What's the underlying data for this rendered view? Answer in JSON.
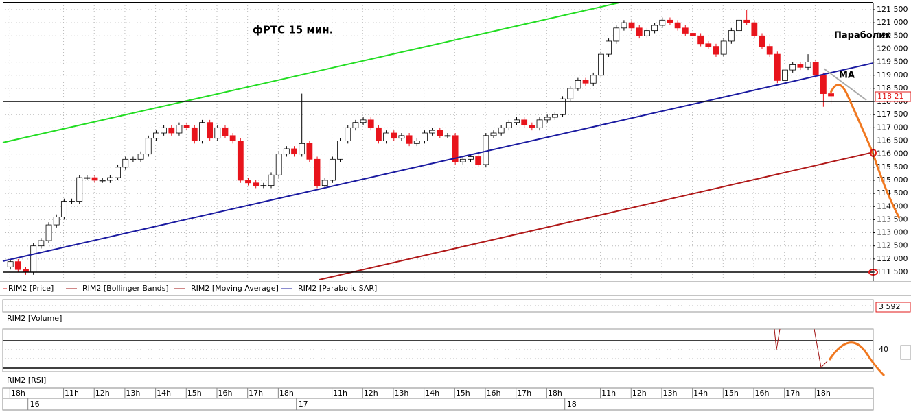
{
  "chart_data": {
    "type": "candlestick",
    "title": "фРТС   15 мин.",
    "annotations": [
      "Параболик",
      "MA"
    ],
    "legend": [
      "RIM2 [Price]",
      "RIM2 [Bollinger Bands]",
      "RIM2 [Moving Average]",
      "RIM2 [Parabolic SAR]"
    ],
    "panels": [
      "RIM2 [Volume]",
      "RIM2 [RSI]"
    ],
    "last_price_label": "118 21",
    "volume_label": "3 592",
    "rsi_ticks": [
      "40"
    ],
    "up_color": "#ffffff",
    "down_color": "#e8141c",
    "grid": true,
    "ylim": [
      111500,
      121500
    ],
    "yticks": [
      {
        "value": 111500,
        "label": "111 500"
      },
      {
        "value": 112000,
        "label": "112 000"
      },
      {
        "value": 112500,
        "label": "112 500"
      },
      {
        "value": 113000,
        "label": "113 000"
      },
      {
        "value": 113500,
        "label": "113 500"
      },
      {
        "value": 114000,
        "label": "114 000"
      },
      {
        "value": 114500,
        "label": "114 500"
      },
      {
        "value": 115000,
        "label": "115 000"
      },
      {
        "value": 115500,
        "label": "115 500"
      },
      {
        "value": 116000,
        "label": "116 000"
      },
      {
        "value": 116500,
        "label": "116 500"
      },
      {
        "value": 117000,
        "label": "117 000"
      },
      {
        "value": 117500,
        "label": "117 500"
      },
      {
        "value": 118000,
        "label": "118 000"
      },
      {
        "value": 118500,
        "label": "118 500"
      },
      {
        "value": 119000,
        "label": "119 000"
      },
      {
        "value": 119500,
        "label": "119 500"
      },
      {
        "value": 120000,
        "label": "120 000"
      },
      {
        "value": 120500,
        "label": "120 500"
      },
      {
        "value": 121000,
        "label": "121 000"
      },
      {
        "value": 121500,
        "label": "121 500"
      }
    ],
    "xlim": [
      -1,
      112.5
    ],
    "xticks": [
      {
        "value": 1,
        "label": "18h"
      },
      {
        "value": 8,
        "label": "11h"
      },
      {
        "value": 12,
        "label": "12h"
      },
      {
        "value": 16,
        "label": "13h"
      },
      {
        "value": 20,
        "label": "14h"
      },
      {
        "value": 24,
        "label": "15h"
      },
      {
        "value": 28,
        "label": "16h"
      },
      {
        "value": 32,
        "label": "17h"
      },
      {
        "value": 36,
        "label": "18h"
      },
      {
        "value": 43,
        "label": "11h"
      },
      {
        "value": 47,
        "label": "12h"
      },
      {
        "value": 51,
        "label": "13h"
      },
      {
        "value": 55,
        "label": "14h"
      },
      {
        "value": 59,
        "label": "15h"
      },
      {
        "value": 63,
        "label": "16h"
      },
      {
        "value": 67,
        "label": "17h"
      },
      {
        "value": 71,
        "label": "18h"
      },
      {
        "value": 78,
        "label": "11h"
      },
      {
        "value": 82,
        "label": "12h"
      },
      {
        "value": 86,
        "label": "13h"
      },
      {
        "value": 90,
        "label": "14h"
      },
      {
        "value": 94,
        "label": "15h"
      },
      {
        "value": 98,
        "label": "16h"
      },
      {
        "value": 102,
        "label": "17h"
      },
      {
        "value": 106,
        "label": "18h"
      }
    ],
    "day_ticks": [
      {
        "value": 3,
        "label": "16"
      },
      {
        "value": 38,
        "label": "17"
      },
      {
        "value": 73,
        "label": "18"
      }
    ],
    "open": [
      111700,
      111900,
      111600,
      111500,
      112500,
      112700,
      113300,
      113600,
      114200,
      114200,
      115100,
      115100,
      115000,
      115000,
      115100,
      115500,
      115800,
      115800,
      116000,
      116600,
      116800,
      117000,
      116800,
      117100,
      117000,
      116500,
      117200,
      116600,
      117000,
      116700,
      116500,
      115000,
      114900,
      114800,
      114800,
      115200,
      116000,
      116200,
      116000,
      116400,
      115800,
      114800,
      115000,
      115800,
      116500,
      117000,
      117200,
      117300,
      117000,
      116500,
      116800,
      116600,
      116700,
      116400,
      116500,
      116800,
      116900,
      116700,
      116700,
      115700,
      115800,
      115900,
      115600,
      116700,
      116800,
      117000,
      117200,
      117300,
      117100,
      117000,
      117300,
      117400,
      117500,
      118100,
      118500,
      118800,
      118700,
      119000,
      119800,
      120300,
      120800,
      121000,
      120800,
      120500,
      120700,
      120900,
      121100,
      121000,
      120800,
      120600,
      120500,
      120200,
      120100,
      119800,
      120300,
      120700,
      121100,
      121000,
      120500,
      120100,
      119800,
      118800,
      119200,
      119400,
      119300,
      119500,
      119000,
      118300
    ],
    "high": [
      112000,
      112000,
      111700,
      112600,
      112800,
      113400,
      113700,
      114300,
      114300,
      115200,
      115200,
      115200,
      115100,
      115200,
      115600,
      115900,
      115900,
      116100,
      116700,
      116900,
      117100,
      117100,
      117200,
      117200,
      117100,
      117300,
      117300,
      117100,
      117100,
      116800,
      116600,
      115100,
      115000,
      114900,
      115300,
      116100,
      116300,
      116300,
      118300,
      116500,
      115900,
      115100,
      115900,
      116600,
      117100,
      117300,
      117400,
      117400,
      117100,
      116900,
      116900,
      116800,
      116800,
      116600,
      116900,
      117000,
      117000,
      116800,
      116800,
      115900,
      116000,
      116000,
      116800,
      116900,
      117100,
      117300,
      117400,
      117400,
      117200,
      117400,
      117500,
      117600,
      118200,
      118600,
      118900,
      118900,
      119100,
      119900,
      120400,
      120900,
      121100,
      121100,
      120900,
      120800,
      121000,
      121200,
      121200,
      121100,
      120900,
      120700,
      120600,
      120300,
      120200,
      120400,
      120800,
      121200,
      121500,
      121100,
      120600,
      120200,
      119900,
      119300,
      119500,
      119500,
      119800,
      119600,
      119100,
      118400
    ],
    "low": [
      111600,
      111500,
      111400,
      111400,
      112400,
      112600,
      113200,
      113500,
      114100,
      114100,
      115000,
      114900,
      114900,
      114900,
      115000,
      115400,
      115700,
      115700,
      115900,
      116500,
      116700,
      116700,
      116700,
      116900,
      116400,
      116400,
      116500,
      116500,
      116600,
      116400,
      114900,
      114800,
      114700,
      114700,
      114700,
      115100,
      115900,
      115900,
      115900,
      115700,
      114700,
      114700,
      114900,
      115700,
      116400,
      116900,
      117100,
      116900,
      116400,
      116400,
      116500,
      116500,
      116300,
      116300,
      116400,
      116700,
      116600,
      116600,
      115600,
      115600,
      115700,
      115500,
      115500,
      116600,
      116700,
      116900,
      117100,
      117000,
      116900,
      116900,
      117200,
      117300,
      117400,
      118000,
      118400,
      118600,
      118600,
      118900,
      119700,
      120200,
      120700,
      120700,
      120400,
      120400,
      120600,
      120800,
      120900,
      120700,
      120500,
      120400,
      120100,
      120000,
      119700,
      119700,
      120200,
      120600,
      120900,
      120400,
      120000,
      119700,
      118700,
      118700,
      119100,
      119200,
      119200,
      118900,
      117800,
      117900
    ],
    "close": [
      111900,
      111600,
      111500,
      112500,
      112700,
      113300,
      113600,
      114200,
      114200,
      115100,
      115100,
      115000,
      115000,
      115100,
      115500,
      115800,
      115800,
      116000,
      116600,
      116800,
      117000,
      116800,
      117100,
      117000,
      116500,
      117200,
      116600,
      117000,
      116700,
      116500,
      115000,
      114900,
      114800,
      114800,
      115200,
      116000,
      116200,
      116000,
      116400,
      115800,
      114800,
      115000,
      115800,
      116500,
      117000,
      117200,
      117300,
      117000,
      116500,
      116800,
      116600,
      116700,
      116400,
      116500,
      116800,
      116900,
      116700,
      116700,
      115700,
      115800,
      115900,
      115600,
      116700,
      116800,
      117000,
      117200,
      117300,
      117100,
      117000,
      117300,
      117400,
      117500,
      118100,
      118500,
      118800,
      118700,
      119000,
      119800,
      120300,
      120800,
      121000,
      120800,
      120500,
      120700,
      120900,
      121100,
      121000,
      120800,
      120600,
      120500,
      120200,
      120100,
      119800,
      120300,
      120700,
      121100,
      121000,
      120500,
      120100,
      119800,
      118800,
      119200,
      119400,
      119300,
      119500,
      119000,
      118300,
      118210
    ]
  }
}
